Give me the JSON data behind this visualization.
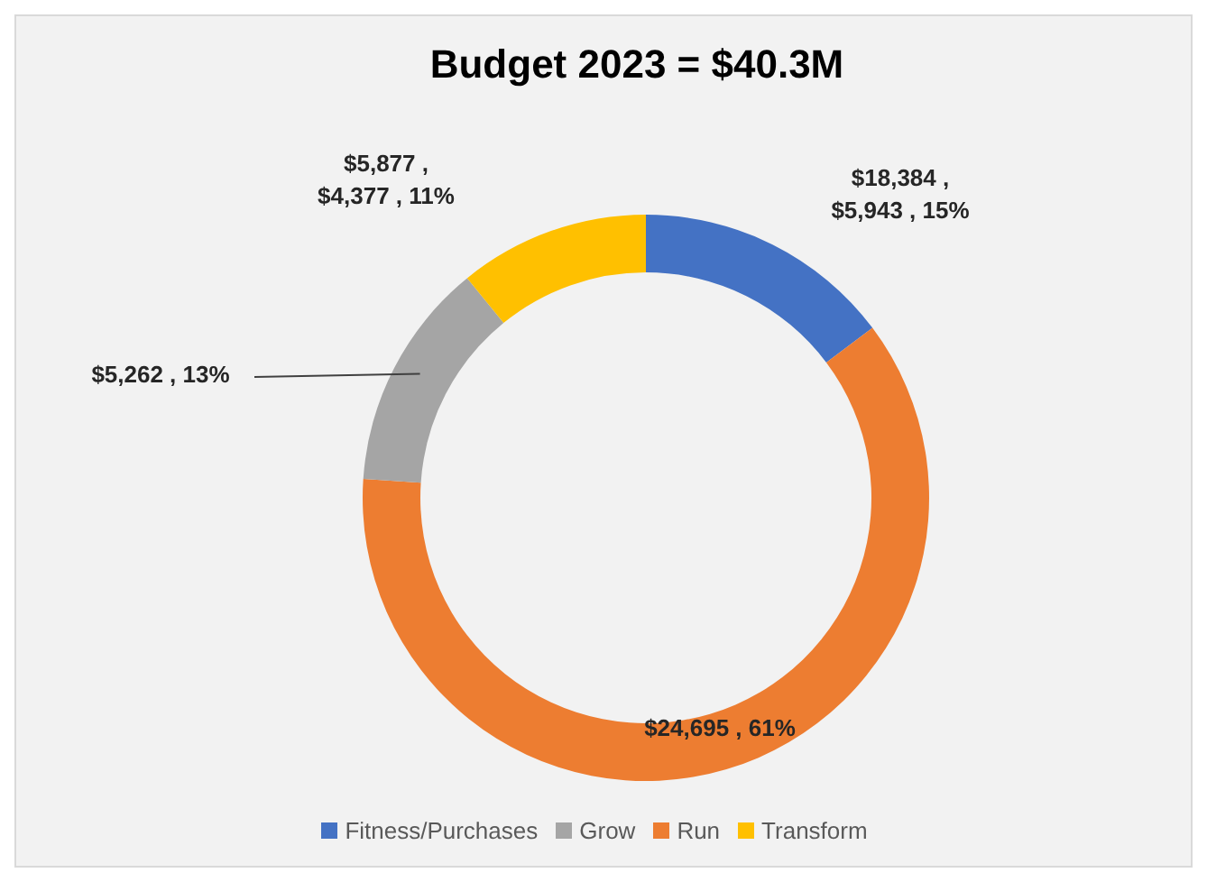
{
  "chart_data": {
    "type": "donut",
    "title": "Budget 2023 = $40.3M",
    "categories": [
      "Fitness/Purchases",
      "Run",
      "Grow",
      "Transform"
    ],
    "values": [
      5943,
      24695,
      5262,
      4377
    ],
    "colors": [
      "#4472c4",
      "#ed7d31",
      "#a5a5a5",
      "#ffc000"
    ],
    "value_labels": [
      "$18,384 , $5,943 , 15%",
      "$24,695 , 61%",
      "$5,262 , 13%",
      "$5,877 , $4,377 , 11%"
    ],
    "legend": "bottom"
  }
}
